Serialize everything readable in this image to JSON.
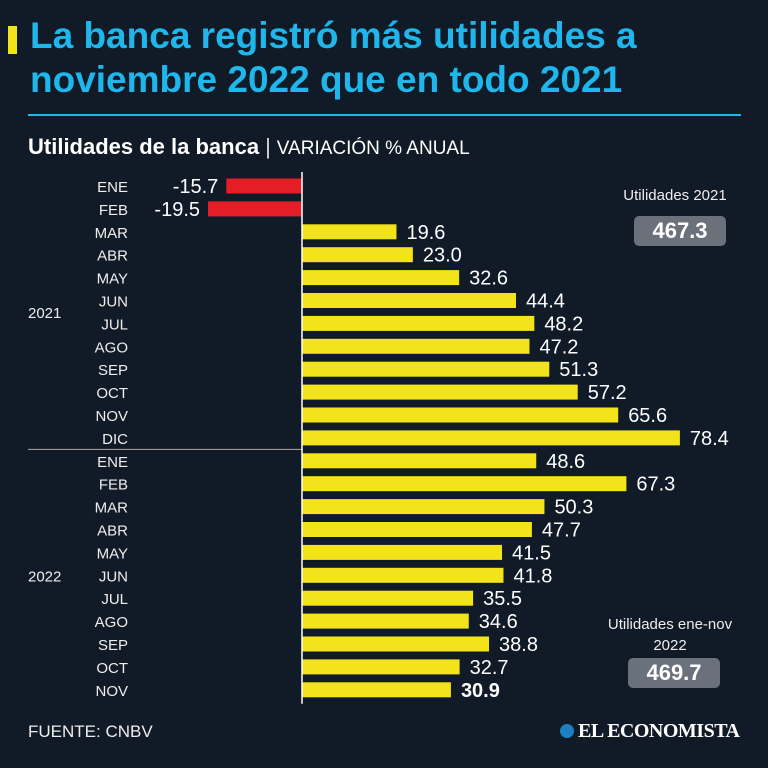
{
  "title": "La banca registró más utilidades a noviembre 2022 que en todo 2021",
  "subtitle": {
    "main": "Utilidades de la banca",
    "separator": "|",
    "unit": "VARIACIÓN % ANUAL"
  },
  "colors": {
    "background": "#111a27",
    "title": "#1fb6ec",
    "positive": "#f2e31b",
    "negative": "#e41e26"
  },
  "chart_data": {
    "type": "bar",
    "orientation": "horizontal",
    "groups": [
      {
        "label": "2021",
        "categories": [
          "ENE",
          "FEB",
          "MAR",
          "ABR",
          "MAY",
          "JUN",
          "JUL",
          "AGO",
          "SEP",
          "OCT",
          "NOV",
          "DIC"
        ],
        "values": [
          -15.7,
          -19.5,
          19.6,
          23.0,
          32.6,
          44.4,
          48.2,
          47.2,
          51.3,
          57.2,
          65.6,
          78.4
        ]
      },
      {
        "label": "2022",
        "categories": [
          "ENE",
          "FEB",
          "MAR",
          "ABR",
          "MAY",
          "JUN",
          "JUL",
          "AGO",
          "SEP",
          "OCT",
          "NOV"
        ],
        "values": [
          48.6,
          67.3,
          50.3,
          47.7,
          41.5,
          41.8,
          35.5,
          34.6,
          38.8,
          32.7,
          30.9
        ]
      }
    ],
    "value_labels": [
      "-15.7",
      "-19.5",
      "19.6",
      "23.0",
      "32.6",
      "44.4",
      "48.2",
      "47.2",
      "51.3",
      "57.2",
      "65.6",
      "78.4",
      "48.6",
      "67.3",
      "50.3",
      "47.7",
      "41.5",
      "41.8",
      "35.5",
      "34.6",
      "38.8",
      "32.7",
      "30.9"
    ],
    "xlim": [
      -19.5,
      78.4
    ],
    "grid": false
  },
  "callouts": [
    {
      "label": "Utilidades 2021",
      "value": "467.3"
    },
    {
      "label": "Utilidades ene-nov 2022",
      "value": "469.7"
    }
  ],
  "source": "FUENTE: CNBV",
  "logo": "EL ECONOMISTA"
}
